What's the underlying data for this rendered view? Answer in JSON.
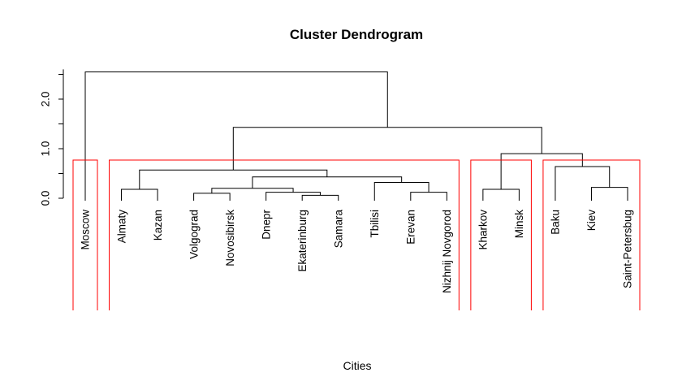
{
  "chart_data": {
    "type": "dendrogram",
    "title": "Cluster Dendrogram",
    "xlabel": "Cities",
    "ylabel": "",
    "ylim": [
      0,
      2.55
    ],
    "yticks": [
      0.0,
      1.0,
      2.0
    ],
    "ytick_labels": [
      "0.0",
      "1.0",
      "2.0"
    ],
    "leaves": [
      "Moscow",
      "Almaty",
      "Kazan",
      "Volgograd",
      "Novosibirsk",
      "Dnepr",
      "Ekaterinburg",
      "Samara",
      "Tbilisi",
      "Erevan",
      "Nizhnij Novgorod",
      "Kharkov",
      "Minsk",
      "Baku",
      "Kiev",
      "Saint-Petersbug"
    ],
    "merges": [
      {
        "a": "Ekaterinburg",
        "b": "Samara",
        "height": 0.06
      },
      {
        "a": "Volgograd",
        "b": "Novosibirsk",
        "height": 0.1
      },
      {
        "a": "Dnepr",
        "b": "Ekaterinburg+Samara",
        "height": 0.12
      },
      {
        "a": "Erevan",
        "b": "Nizhnij Novgorod",
        "height": 0.12
      },
      {
        "a": "Almaty",
        "b": "Kazan",
        "height": 0.18
      },
      {
        "a": "Kharkov",
        "b": "Minsk",
        "height": 0.18
      },
      {
        "a": "Volgograd+Novosibirsk",
        "b": "Dnepr+Ekaterinburg+Samara",
        "height": 0.2
      },
      {
        "a": "Kiev",
        "b": "Saint-Petersbug",
        "height": 0.22
      },
      {
        "a": "Tbilisi",
        "b": "Erevan+Nizhnij Novgorod",
        "height": 0.32
      },
      {
        "a": "Volgograd..Samara",
        "b": "Tbilisi..Nizhnij Novgorod",
        "height": 0.43
      },
      {
        "a": "Almaty+Kazan",
        "b": "Volgograd..Nizhnij Novgorod",
        "height": 0.57
      },
      {
        "a": "Baku",
        "b": "Kiev+Saint-Petersbug",
        "height": 0.64
      },
      {
        "a": "Kharkov+Minsk",
        "b": "Baku+Kiev+Saint-Petersbug",
        "height": 0.9
      },
      {
        "a": "Almaty..Nizhnij Novgorod",
        "b": "Kharkov..Saint-Petersbug",
        "height": 1.43
      },
      {
        "a": "Moscow",
        "b": "Almaty..Saint-Petersbug",
        "height": 2.55
      }
    ],
    "cluster_boxes": [
      {
        "name": "Moscow",
        "first": 0,
        "last": 0
      },
      {
        "name": "Almaty..Nizhnij Novgorod",
        "first": 1,
        "last": 10
      },
      {
        "name": "Kharkov..Minsk",
        "first": 11,
        "last": 12
      },
      {
        "name": "Baku..Saint-Petersbug",
        "first": 13,
        "last": 15
      }
    ],
    "box_color": "#ff0000",
    "line_color": "#000000"
  }
}
